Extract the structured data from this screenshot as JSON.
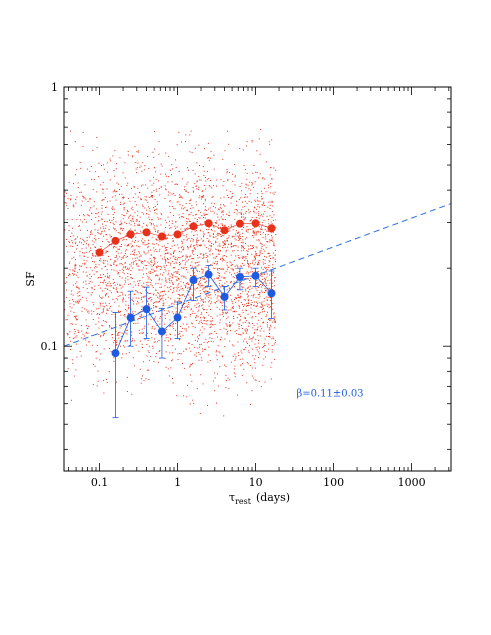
{
  "chart_data": {
    "type": "scatter",
    "xlabel": "τ",
    "xlabel_subscript": "rest",
    "xlabel_units": "(days)",
    "ylabel": "SF",
    "x_scale": "log",
    "y_scale": "log",
    "xlim": [
      0.035,
      3200
    ],
    "ylim": [
      0.033,
      1.0
    ],
    "x_ticks": [
      {
        "value": 0.1,
        "label": "0.1"
      },
      {
        "value": 1,
        "label": "1"
      },
      {
        "value": 10,
        "label": "10"
      },
      {
        "value": 100,
        "label": "100"
      },
      {
        "value": 1000,
        "label": "1000"
      }
    ],
    "y_ticks": [
      {
        "value": 0.1,
        "label": "0.1"
      },
      {
        "value": 1,
        "label": "1"
      }
    ],
    "grid": false,
    "legend": "none",
    "series": [
      {
        "kind": "background-scatter",
        "color": "#e8311a",
        "n_points": 3500,
        "x_range": [
          0.035,
          18
        ],
        "y_range": [
          0.033,
          1.0
        ]
      },
      {
        "kind": "markers",
        "color": "#e8311a",
        "x": [
          0.1,
          0.16,
          0.25,
          0.4,
          0.63,
          1.0,
          1.6,
          2.5,
          4.0,
          6.3,
          10.0,
          16.0
        ],
        "y": [
          0.23,
          0.255,
          0.27,
          0.275,
          0.265,
          0.27,
          0.29,
          0.298,
          0.28,
          0.297,
          0.298,
          0.285
        ]
      },
      {
        "kind": "markers-with-errorbars",
        "color": "#1e5be0",
        "x": [
          0.16,
          0.25,
          0.4,
          0.63,
          1.0,
          1.6,
          2.5,
          4.0,
          6.3,
          10.0,
          16.0
        ],
        "y": [
          0.094,
          0.129,
          0.139,
          0.114,
          0.129,
          0.18,
          0.189,
          0.155,
          0.185,
          0.187,
          0.16
        ],
        "y_low": [
          0.053,
          0.1,
          0.107,
          0.09,
          0.107,
          0.15,
          0.17,
          0.138,
          0.165,
          0.17,
          0.128
        ],
        "y_high": [
          0.135,
          0.163,
          0.169,
          0.14,
          0.148,
          0.2,
          0.205,
          0.17,
          0.2,
          0.2,
          0.195
        ]
      },
      {
        "kind": "fit-line",
        "style": "dashed",
        "color": "#2e6fe0",
        "x": [
          0.035,
          3200
        ],
        "y": [
          0.1,
          0.355
        ]
      }
    ],
    "annotations": [
      {
        "text": "β=0.11±0.03",
        "x": 90,
        "y": 0.064,
        "color": "#1e5be0"
      }
    ]
  }
}
